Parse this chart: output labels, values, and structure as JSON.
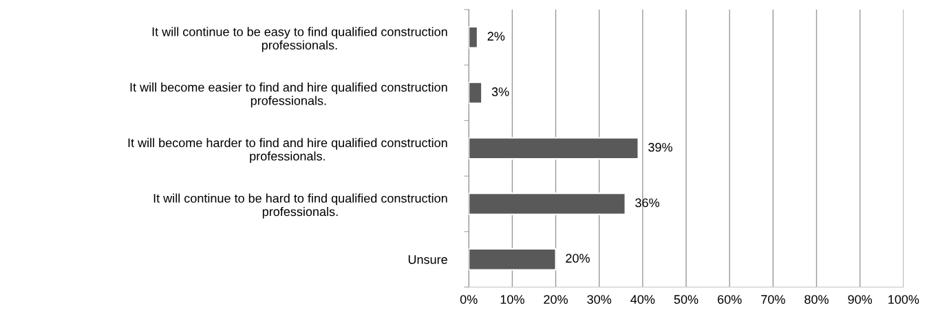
{
  "chart_data": {
    "type": "bar",
    "orientation": "horizontal",
    "categories": [
      "It will continue to be easy to find qualified construction professionals.",
      "It will become easier to find and hire qualified construction professionals.",
      "It will become harder to find and hire qualified construction professionals.",
      "It will continue to be hard to find qualified construction professionals.",
      "Unsure"
    ],
    "values": [
      2,
      3,
      39,
      36,
      20
    ],
    "value_labels": [
      "2%",
      "3%",
      "39%",
      "36%",
      "20%"
    ],
    "color": "#595959",
    "xlim": [
      0,
      100
    ],
    "xticks": [
      {
        "value": 0,
        "label": "0%"
      },
      {
        "value": 10,
        "label": "10%"
      },
      {
        "value": 20,
        "label": "20%"
      },
      {
        "value": 30,
        "label": "30%"
      },
      {
        "value": 40,
        "label": "40%"
      },
      {
        "value": 50,
        "label": "50%"
      },
      {
        "value": 60,
        "label": "60%"
      },
      {
        "value": 70,
        "label": "70%"
      },
      {
        "value": 80,
        "label": "80%"
      },
      {
        "value": 90,
        "label": "90%"
      },
      {
        "value": 100,
        "label": "100%"
      }
    ],
    "grid": "x",
    "legend": false
  }
}
